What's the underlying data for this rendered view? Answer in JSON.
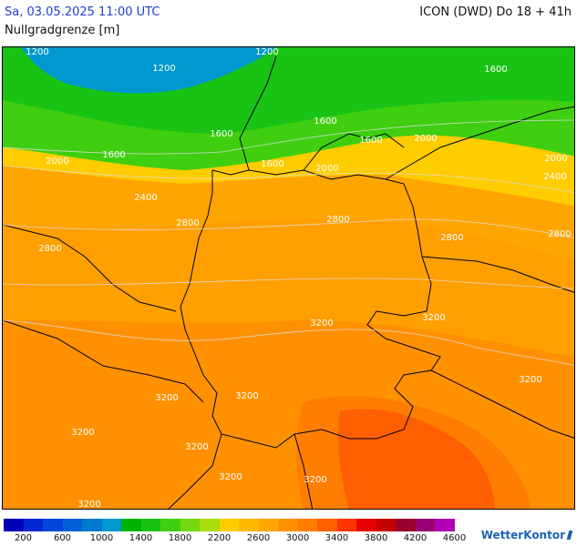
{
  "header": {
    "datetime": "Sa, 03.05.2025 11:00 UTC",
    "parameter": "Nullgradgrenze [m]",
    "model_run": "ICON (DWD) Do 18 + 41h"
  },
  "legend": {
    "colors": [
      "#0000b8",
      "#0028d4",
      "#0046d8",
      "#005fd6",
      "#007ad0",
      "#0098cf",
      "#00b300",
      "#19c314",
      "#3fcf10",
      "#74d712",
      "#a9df0e",
      "#ffcc00",
      "#ffb800",
      "#ffa500",
      "#ff9100",
      "#ff7d00",
      "#ff5f00",
      "#ff3400",
      "#e80000",
      "#c40000",
      "#99002e",
      "#990074",
      "#b000b5"
    ],
    "labels": [
      "200",
      "600",
      "1000",
      "1400",
      "1800",
      "2200",
      "2600",
      "3000",
      "3400",
      "3800",
      "4200",
      "4600"
    ]
  },
  "contour_labels": [
    "1200",
    "1200",
    "1200",
    "1600",
    "1600",
    "1600",
    "1600",
    "1600",
    "1600",
    "2000",
    "2000",
    "2000",
    "2000",
    "2400",
    "2400",
    "2800",
    "2800",
    "2800",
    "2800",
    "2800",
    "3200",
    "3200",
    "3200",
    "3200",
    "3200",
    "3200",
    "3200",
    "3200",
    "3200",
    "3200"
  ],
  "branding": {
    "logo_text": "WetterKontor"
  }
}
